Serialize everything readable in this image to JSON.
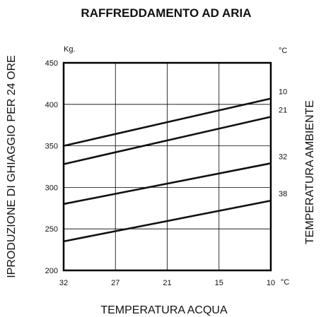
{
  "chart_data": {
    "type": "line",
    "title": "RAFFREDDAMENTO AD ARIA",
    "xlabel": "TEMPERATURA ACQUA",
    "ylabel": "IPRODUZIONE DI GHIAGGIO PER 24 ORE",
    "right_label": "TEMPERATURA AMBIENTE",
    "y_unit": "Kg.",
    "right_unit": "°C",
    "x_unit": "°C",
    "x_ticks": [
      "32",
      "27",
      "21",
      "15",
      "10"
    ],
    "xlim": [
      32,
      10
    ],
    "y_ticks": [
      "450",
      "400",
      "350",
      "300",
      "250",
      "200"
    ],
    "ylim": [
      200,
      450
    ],
    "grid": true,
    "series": [
      {
        "name": "10",
        "x": [
          32,
          10
        ],
        "values": [
          350,
          407
        ]
      },
      {
        "name": "21",
        "x": [
          32,
          10
        ],
        "values": [
          328,
          385
        ]
      },
      {
        "name": "32",
        "x": [
          32,
          10
        ],
        "values": [
          280,
          329
        ]
      },
      {
        "name": "38",
        "x": [
          32,
          10
        ],
        "values": [
          235,
          284
        ]
      }
    ]
  }
}
